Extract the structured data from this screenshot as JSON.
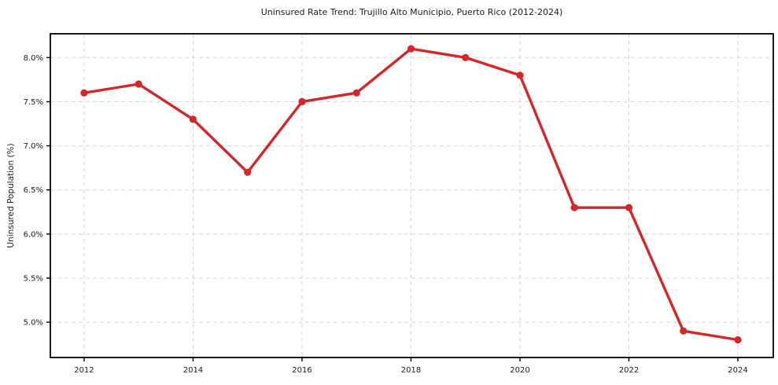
{
  "chart_data": {
    "type": "line",
    "title": "Uninsured Rate Trend: Trujillo Alto Municipio, Puerto Rico (2012-2024)",
    "xlabel": "",
    "ylabel": "Uninsured Population (%)",
    "x": [
      2012,
      2013,
      2014,
      2015,
      2016,
      2017,
      2018,
      2019,
      2020,
      2021,
      2022,
      2023,
      2024
    ],
    "series": [
      {
        "name": "Uninsured Population (%)",
        "values": [
          7.6,
          7.7,
          7.3,
          6.7,
          7.5,
          7.6,
          8.1,
          8.0,
          7.8,
          6.3,
          6.3,
          4.9,
          4.8
        ],
        "color": "#d62728",
        "marker": "circle"
      }
    ],
    "xlim": [
      2011.38,
      2024.65
    ],
    "ylim": [
      4.6,
      8.27
    ],
    "x_ticks": [
      {
        "value": 2012,
        "label": "2012"
      },
      {
        "value": 2014,
        "label": "2014"
      },
      {
        "value": 2016,
        "label": "2016"
      },
      {
        "value": 2018,
        "label": "2018"
      },
      {
        "value": 2020,
        "label": "2020"
      },
      {
        "value": 2022,
        "label": "2022"
      },
      {
        "value": 2024,
        "label": "2024"
      }
    ],
    "y_ticks": [
      {
        "value": 5.0,
        "label": "5.0%"
      },
      {
        "value": 5.5,
        "label": "5.5%"
      },
      {
        "value": 6.0,
        "label": "6.0%"
      },
      {
        "value": 6.5,
        "label": "6.5%"
      },
      {
        "value": 7.0,
        "label": "7.0%"
      },
      {
        "value": 7.5,
        "label": "7.5%"
      },
      {
        "value": 8.0,
        "label": "8.0%"
      }
    ],
    "grid": true,
    "grid_style": "dashed",
    "legend": "none",
    "colors": {
      "line": "#d62728",
      "grid": "#d4d4d4",
      "spine": "#000000",
      "text": "#1a1a1a",
      "background": "#ffffff"
    }
  }
}
